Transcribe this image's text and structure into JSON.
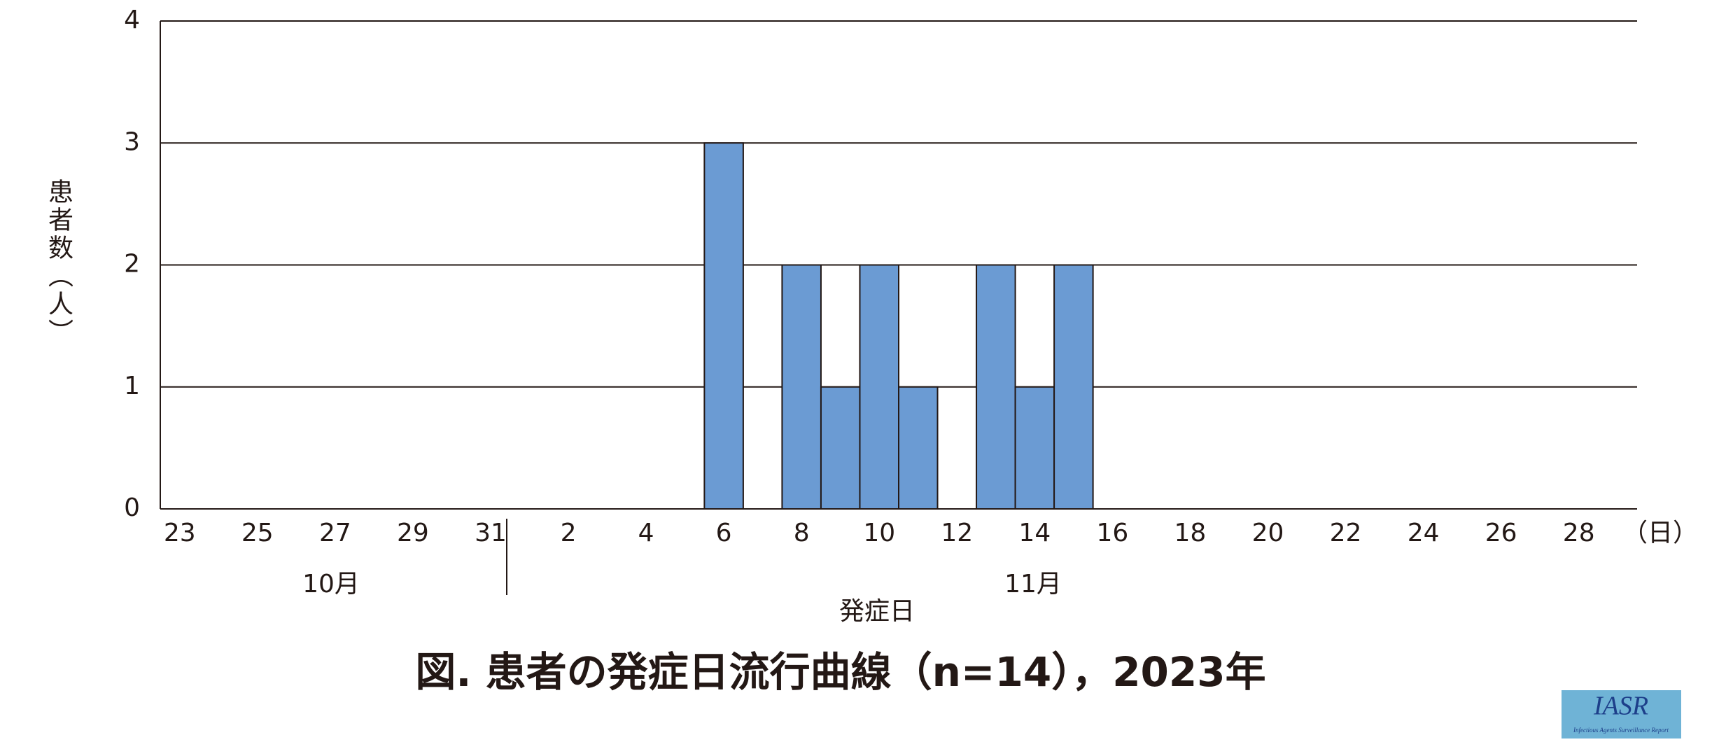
{
  "chart_data": {
    "type": "bar",
    "title": "図. 患者の発症日流行曲線（n=14），2023年",
    "y_label": "患者数（人）",
    "x_label": "発症日",
    "x_unit": "（日）",
    "months": [
      "10月",
      "11月"
    ],
    "categories": [
      "23",
      null,
      "25",
      null,
      "27",
      null,
      "29",
      null,
      "31",
      null,
      "2",
      null,
      "4",
      null,
      "6",
      null,
      "8",
      null,
      "10",
      null,
      "12",
      null,
      "14",
      null,
      "16",
      null,
      "18",
      null,
      "20",
      null,
      "22",
      null,
      "24",
      null,
      "26",
      null,
      "28",
      null
    ],
    "values": [
      0,
      0,
      0,
      0,
      0,
      0,
      0,
      0,
      0,
      0,
      0,
      0,
      0,
      0,
      3,
      0,
      2,
      1,
      2,
      1,
      0,
      2,
      1,
      2,
      0,
      0,
      0,
      0,
      0,
      0,
      0,
      0,
      0,
      0,
      0,
      0,
      0,
      0
    ],
    "color": "#6b9bd3",
    "ylim": [
      0,
      4
    ],
    "yticks": [
      0,
      1,
      2,
      3,
      4
    ],
    "grid": true
  },
  "logo": {
    "title": "IASR",
    "subtitle": "Infectious Agents Surveillance Report"
  }
}
